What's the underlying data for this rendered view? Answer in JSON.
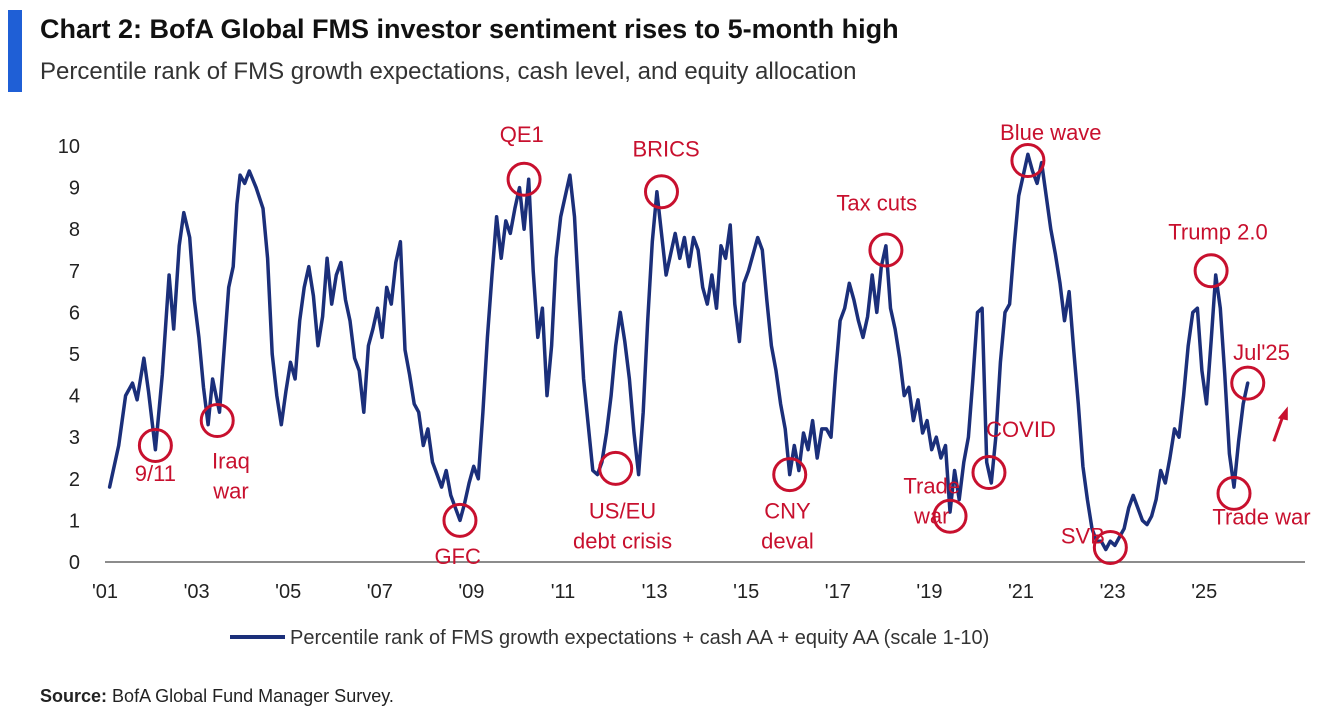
{
  "header": {
    "title": "Chart 2: BofA Global FMS investor sentiment rises to 5-month high",
    "subtitle": "Percentile rank of FMS growth expectations, cash level, and equity allocation"
  },
  "footer": {
    "source_label": "Source:",
    "source_text": "BofA Global Fund Manager Survey."
  },
  "colors": {
    "line": "#1b2f7a",
    "annotation": "#c8102e",
    "accent": "#1f5fd6"
  },
  "chart_data": {
    "type": "line",
    "x_tick_labels": [
      "'01",
      "'03",
      "'05",
      "'07",
      "'09",
      "'11",
      "'13",
      "'15",
      "'17",
      "'19",
      "'21",
      "'23",
      "'25"
    ],
    "x_tick_years": [
      2001,
      2003,
      2005,
      2007,
      2009,
      2011,
      2013,
      2015,
      2017,
      2019,
      2021,
      2023,
      2025
    ],
    "y_tick_labels": [
      "0",
      "1",
      "2",
      "3",
      "4",
      "5",
      "6",
      "7",
      "8",
      "9",
      "10"
    ],
    "ylim": [
      0,
      10
    ],
    "xlim": [
      2001,
      2027.2
    ],
    "grid": false,
    "legend": {
      "position": "bottom",
      "label": "Percentile rank of FMS growth expectations + cash AA + equity AA (scale 1-10)"
    },
    "series": [
      {
        "name": "Percentile rank of FMS growth expectations + cash AA + equity AA (scale 1-10)",
        "points": [
          [
            2001.1,
            1.8
          ],
          [
            2001.3,
            2.8
          ],
          [
            2001.45,
            4.0
          ],
          [
            2001.6,
            4.3
          ],
          [
            2001.7,
            3.9
          ],
          [
            2001.85,
            4.9
          ],
          [
            2001.95,
            4.1
          ],
          [
            2002.1,
            2.7
          ],
          [
            2002.25,
            4.5
          ],
          [
            2002.4,
            6.9
          ],
          [
            2002.5,
            5.6
          ],
          [
            2002.62,
            7.6
          ],
          [
            2002.72,
            8.4
          ],
          [
            2002.85,
            7.8
          ],
          [
            2002.95,
            6.3
          ],
          [
            2003.05,
            5.4
          ],
          [
            2003.15,
            4.2
          ],
          [
            2003.25,
            3.3
          ],
          [
            2003.35,
            4.4
          ],
          [
            2003.5,
            3.6
          ],
          [
            2003.6,
            5.1
          ],
          [
            2003.7,
            6.6
          ],
          [
            2003.8,
            7.1
          ],
          [
            2003.88,
            8.6
          ],
          [
            2003.95,
            9.3
          ],
          [
            2004.05,
            9.1
          ],
          [
            2004.15,
            9.4
          ],
          [
            2004.3,
            9.0
          ],
          [
            2004.45,
            8.5
          ],
          [
            2004.55,
            7.3
          ],
          [
            2004.65,
            5.0
          ],
          [
            2004.75,
            4.0
          ],
          [
            2004.85,
            3.3
          ],
          [
            2004.95,
            4.1
          ],
          [
            2005.05,
            4.8
          ],
          [
            2005.15,
            4.4
          ],
          [
            2005.25,
            5.8
          ],
          [
            2005.35,
            6.6
          ],
          [
            2005.45,
            7.1
          ],
          [
            2005.55,
            6.4
          ],
          [
            2005.65,
            5.2
          ],
          [
            2005.75,
            5.9
          ],
          [
            2005.85,
            7.3
          ],
          [
            2005.95,
            6.2
          ],
          [
            2006.05,
            6.9
          ],
          [
            2006.15,
            7.2
          ],
          [
            2006.25,
            6.3
          ],
          [
            2006.35,
            5.8
          ],
          [
            2006.45,
            4.9
          ],
          [
            2006.55,
            4.6
          ],
          [
            2006.65,
            3.6
          ],
          [
            2006.75,
            5.2
          ],
          [
            2006.85,
            5.6
          ],
          [
            2006.95,
            6.1
          ],
          [
            2007.05,
            5.4
          ],
          [
            2007.15,
            6.6
          ],
          [
            2007.25,
            6.2
          ],
          [
            2007.35,
            7.2
          ],
          [
            2007.45,
            7.7
          ],
          [
            2007.55,
            5.1
          ],
          [
            2007.65,
            4.5
          ],
          [
            2007.75,
            3.8
          ],
          [
            2007.85,
            3.6
          ],
          [
            2007.95,
            2.8
          ],
          [
            2008.05,
            3.2
          ],
          [
            2008.15,
            2.4
          ],
          [
            2008.25,
            2.1
          ],
          [
            2008.35,
            1.8
          ],
          [
            2008.45,
            2.2
          ],
          [
            2008.55,
            1.6
          ],
          [
            2008.65,
            1.3
          ],
          [
            2008.75,
            1.0
          ],
          [
            2008.85,
            1.4
          ],
          [
            2008.95,
            1.9
          ],
          [
            2009.05,
            2.3
          ],
          [
            2009.15,
            2.0
          ],
          [
            2009.25,
            3.6
          ],
          [
            2009.35,
            5.4
          ],
          [
            2009.45,
            6.9
          ],
          [
            2009.55,
            8.3
          ],
          [
            2009.65,
            7.3
          ],
          [
            2009.75,
            8.2
          ],
          [
            2009.85,
            7.9
          ],
          [
            2009.95,
            8.5
          ],
          [
            2010.05,
            9.0
          ],
          [
            2010.15,
            8.0
          ],
          [
            2010.25,
            9.2
          ],
          [
            2010.35,
            7.0
          ],
          [
            2010.45,
            5.4
          ],
          [
            2010.55,
            6.1
          ],
          [
            2010.65,
            4.0
          ],
          [
            2010.75,
            5.2
          ],
          [
            2010.85,
            7.3
          ],
          [
            2010.95,
            8.3
          ],
          [
            2011.05,
            8.8
          ],
          [
            2011.15,
            9.3
          ],
          [
            2011.25,
            8.3
          ],
          [
            2011.35,
            6.3
          ],
          [
            2011.45,
            4.4
          ],
          [
            2011.55,
            3.3
          ],
          [
            2011.65,
            2.2
          ],
          [
            2011.75,
            2.1
          ],
          [
            2011.85,
            2.4
          ],
          [
            2011.95,
            3.1
          ],
          [
            2012.05,
            4.0
          ],
          [
            2012.15,
            5.2
          ],
          [
            2012.25,
            6.0
          ],
          [
            2012.35,
            5.3
          ],
          [
            2012.45,
            4.4
          ],
          [
            2012.55,
            3.1
          ],
          [
            2012.65,
            2.1
          ],
          [
            2012.75,
            3.6
          ],
          [
            2012.85,
            5.8
          ],
          [
            2012.95,
            7.7
          ],
          [
            2013.05,
            8.9
          ],
          [
            2013.15,
            7.9
          ],
          [
            2013.25,
            6.9
          ],
          [
            2013.35,
            7.4
          ],
          [
            2013.45,
            7.9
          ],
          [
            2013.55,
            7.3
          ],
          [
            2013.65,
            7.8
          ],
          [
            2013.75,
            7.1
          ],
          [
            2013.85,
            7.8
          ],
          [
            2013.95,
            7.5
          ],
          [
            2014.05,
            6.6
          ],
          [
            2014.15,
            6.2
          ],
          [
            2014.25,
            6.9
          ],
          [
            2014.35,
            6.1
          ],
          [
            2014.45,
            7.6
          ],
          [
            2014.55,
            7.3
          ],
          [
            2014.65,
            8.1
          ],
          [
            2014.75,
            6.2
          ],
          [
            2014.85,
            5.3
          ],
          [
            2014.95,
            6.7
          ],
          [
            2015.05,
            7.0
          ],
          [
            2015.15,
            7.4
          ],
          [
            2015.25,
            7.8
          ],
          [
            2015.35,
            7.5
          ],
          [
            2015.45,
            6.3
          ],
          [
            2015.55,
            5.2
          ],
          [
            2015.65,
            4.6
          ],
          [
            2015.75,
            3.8
          ],
          [
            2015.85,
            3.2
          ],
          [
            2015.95,
            2.1
          ],
          [
            2016.05,
            2.8
          ],
          [
            2016.15,
            2.2
          ],
          [
            2016.25,
            3.1
          ],
          [
            2016.35,
            2.7
          ],
          [
            2016.45,
            3.4
          ],
          [
            2016.55,
            2.5
          ],
          [
            2016.65,
            3.2
          ],
          [
            2016.75,
            3.2
          ],
          [
            2016.85,
            3.0
          ],
          [
            2016.95,
            4.5
          ],
          [
            2017.05,
            5.8
          ],
          [
            2017.15,
            6.1
          ],
          [
            2017.25,
            6.7
          ],
          [
            2017.35,
            6.3
          ],
          [
            2017.45,
            5.8
          ],
          [
            2017.55,
            5.4
          ],
          [
            2017.65,
            5.9
          ],
          [
            2017.75,
            6.9
          ],
          [
            2017.85,
            6.0
          ],
          [
            2017.95,
            7.1
          ],
          [
            2018.05,
            7.6
          ],
          [
            2018.15,
            6.1
          ],
          [
            2018.25,
            5.6
          ],
          [
            2018.35,
            4.9
          ],
          [
            2018.45,
            4.0
          ],
          [
            2018.55,
            4.2
          ],
          [
            2018.65,
            3.4
          ],
          [
            2018.75,
            3.9
          ],
          [
            2018.85,
            3.1
          ],
          [
            2018.95,
            3.4
          ],
          [
            2019.05,
            2.7
          ],
          [
            2019.15,
            3.0
          ],
          [
            2019.25,
            2.5
          ],
          [
            2019.35,
            2.8
          ],
          [
            2019.45,
            1.2
          ],
          [
            2019.55,
            2.2
          ],
          [
            2019.65,
            1.5
          ],
          [
            2019.75,
            2.4
          ],
          [
            2019.85,
            3.0
          ],
          [
            2019.95,
            4.4
          ],
          [
            2020.05,
            6.0
          ],
          [
            2020.15,
            6.1
          ],
          [
            2020.25,
            2.4
          ],
          [
            2020.35,
            1.9
          ],
          [
            2020.45,
            3.0
          ],
          [
            2020.55,
            4.8
          ],
          [
            2020.65,
            6.0
          ],
          [
            2020.75,
            6.2
          ],
          [
            2020.85,
            7.6
          ],
          [
            2020.95,
            8.8
          ],
          [
            2021.05,
            9.3
          ],
          [
            2021.15,
            9.8
          ],
          [
            2021.25,
            9.4
          ],
          [
            2021.35,
            9.1
          ],
          [
            2021.45,
            9.6
          ],
          [
            2021.55,
            8.8
          ],
          [
            2021.65,
            8.0
          ],
          [
            2021.75,
            7.4
          ],
          [
            2021.85,
            6.7
          ],
          [
            2021.95,
            5.8
          ],
          [
            2022.05,
            6.5
          ],
          [
            2022.15,
            5.1
          ],
          [
            2022.25,
            3.8
          ],
          [
            2022.35,
            2.3
          ],
          [
            2022.45,
            1.5
          ],
          [
            2022.55,
            0.8
          ],
          [
            2022.65,
            0.5
          ],
          [
            2022.75,
            0.5
          ],
          [
            2022.85,
            0.3
          ],
          [
            2022.95,
            0.5
          ],
          [
            2023.05,
            0.4
          ],
          [
            2023.15,
            0.6
          ],
          [
            2023.25,
            0.8
          ],
          [
            2023.35,
            1.3
          ],
          [
            2023.45,
            1.6
          ],
          [
            2023.55,
            1.3
          ],
          [
            2023.65,
            1.0
          ],
          [
            2023.75,
            0.9
          ],
          [
            2023.85,
            1.1
          ],
          [
            2023.95,
            1.5
          ],
          [
            2024.05,
            2.2
          ],
          [
            2024.15,
            1.9
          ],
          [
            2024.25,
            2.5
          ],
          [
            2024.35,
            3.2
          ],
          [
            2024.45,
            3.0
          ],
          [
            2024.55,
            4.0
          ],
          [
            2024.65,
            5.2
          ],
          [
            2024.75,
            6.0
          ],
          [
            2024.85,
            6.1
          ],
          [
            2024.95,
            4.6
          ],
          [
            2025.05,
            3.8
          ],
          [
            2025.15,
            5.3
          ],
          [
            2025.25,
            6.9
          ],
          [
            2025.35,
            6.1
          ],
          [
            2025.45,
            4.5
          ],
          [
            2025.55,
            2.6
          ],
          [
            2025.65,
            1.8
          ],
          [
            2025.75,
            2.9
          ],
          [
            2025.85,
            3.8
          ],
          [
            2025.95,
            4.3
          ]
        ]
      }
    ],
    "annotations": [
      {
        "label": "9/11",
        "circle": [
          2002.1,
          2.8
        ],
        "text_pos": [
          2002.1,
          1.95
        ]
      },
      {
        "label": "Iraq\nwar",
        "circle": [
          2003.45,
          3.4
        ],
        "text_pos": [
          2003.75,
          2.25
        ]
      },
      {
        "label": "GFC",
        "circle": [
          2008.75,
          1.0
        ],
        "text_pos": [
          2008.7,
          -0.05
        ]
      },
      {
        "label": "QE1",
        "circle": [
          2010.15,
          9.2
        ],
        "text_pos": [
          2010.1,
          10.1
        ]
      },
      {
        "label": "US/EU\ndebt crisis",
        "circle": [
          2012.15,
          2.25
        ],
        "text_pos": [
          2012.3,
          1.05
        ]
      },
      {
        "label": "BRICS",
        "circle": [
          2013.15,
          8.9
        ],
        "text_pos": [
          2013.25,
          9.75
        ]
      },
      {
        "label": "CNY\ndeval",
        "circle": [
          2015.95,
          2.1
        ],
        "text_pos": [
          2015.9,
          1.05
        ]
      },
      {
        "label": "Tax cuts",
        "circle": [
          2018.05,
          7.5
        ],
        "text_pos": [
          2017.85,
          8.45
        ]
      },
      {
        "label": "Trade\nwar",
        "circle": [
          2019.45,
          1.1
        ],
        "text_pos": [
          2019.05,
          1.65
        ]
      },
      {
        "label": "COVID",
        "circle": [
          2020.3,
          2.15
        ],
        "text_pos": [
          2021.0,
          3.0
        ]
      },
      {
        "label": "Blue wave",
        "circle": [
          2021.15,
          9.65
        ],
        "text_pos": [
          2021.65,
          10.15
        ]
      },
      {
        "label": "SVB",
        "circle": [
          2022.95,
          0.35
        ],
        "text_pos": [
          2022.35,
          0.45
        ]
      },
      {
        "label": "Trump 2.0",
        "circle": [
          2025.15,
          7.0
        ],
        "text_pos": [
          2025.3,
          7.75
        ]
      },
      {
        "label": "Jul'25",
        "circle": [
          2025.95,
          4.3
        ],
        "text_pos": [
          2026.25,
          4.85
        ]
      },
      {
        "label": "Trade war",
        "circle": [
          2025.65,
          1.65
        ],
        "text_pos": [
          2026.25,
          0.9
        ]
      }
    ]
  }
}
